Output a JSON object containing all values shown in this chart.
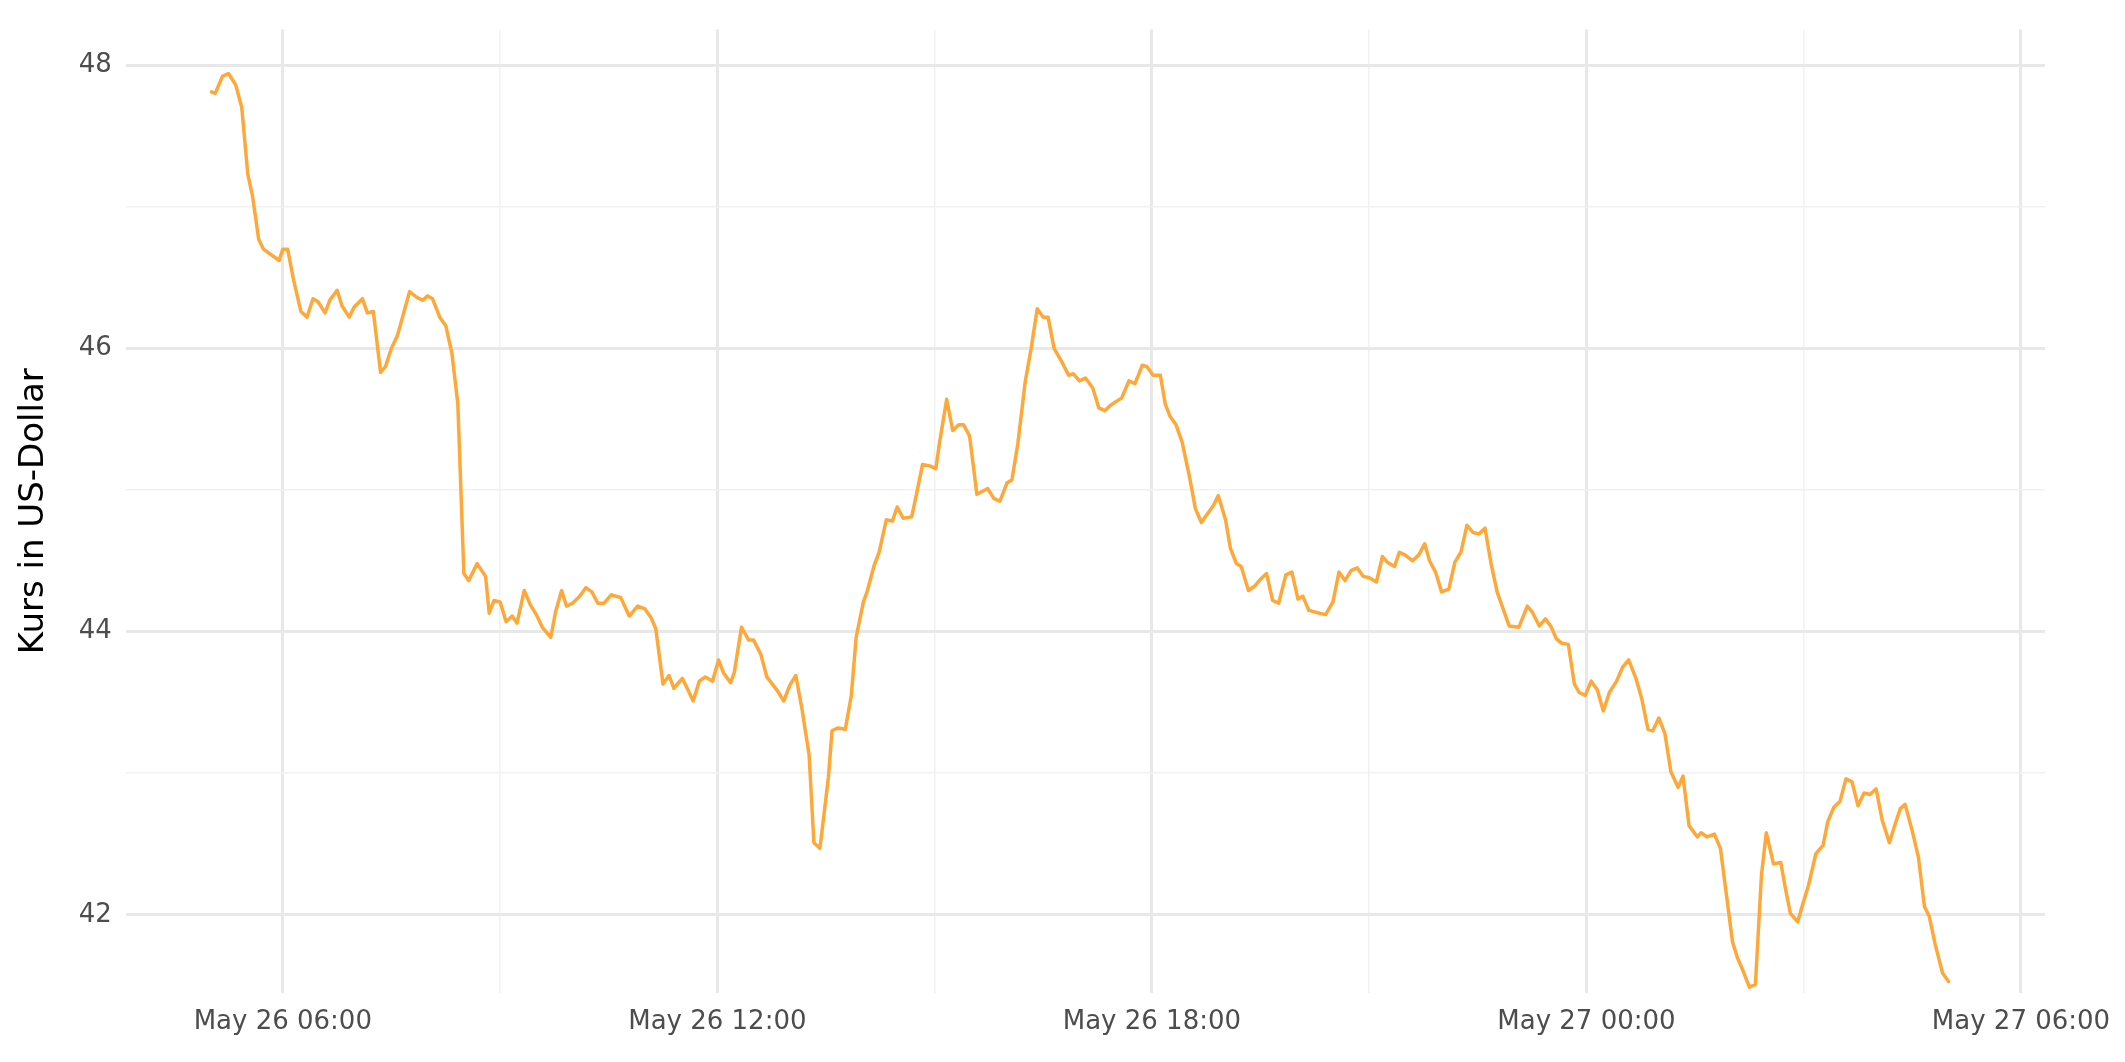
{
  "chart_data": {
    "type": "line",
    "ylabel": "Kurs in US-Dollar",
    "color": "#ffa83a",
    "line_style": "solid",
    "marker": "none",
    "grid": true,
    "legend": false,
    "x": [
      "--05-26T05:01",
      "--05-26T05:04",
      "--05-26T05:10",
      "--05-26T05:15",
      "--05-26T05:21",
      "--05-26T05:26",
      "--05-26T05:31",
      "--05-26T05:35",
      "--05-26T05:40",
      "--05-26T05:44",
      "--05-26T05:57",
      "--05-26T06:00",
      "--05-26T06:04",
      "--05-26T06:09",
      "--05-26T06:15",
      "--05-26T06:20",
      "--05-26T06:25",
      "--05-26T06:29",
      "--05-26T06:35",
      "--05-26T06:39",
      "--05-26T06:45",
      "--05-26T06:49",
      "--05-26T06:55",
      "--05-26T06:59",
      "--05-26T07:06",
      "--05-26T07:10",
      "--05-26T07:15",
      "--05-26T07:21",
      "--05-26T07:25",
      "--05-26T07:30",
      "--05-26T07:35",
      "--05-26T07:45",
      "--05-26T07:51",
      "--05-26T07:56",
      "--05-26T08:00",
      "--05-26T08:04",
      "--05-26T08:10",
      "--05-26T08:15",
      "--05-26T08:20",
      "--05-26T08:25",
      "--05-26T08:30",
      "--05-26T08:34",
      "--05-26T08:41",
      "--05-26T08:48",
      "--05-26T08:51",
      "--05-26T08:55",
      "--05-26T09:00",
      "--05-26T09:05",
      "--05-26T09:10",
      "--05-26T09:14",
      "--05-26T09:20",
      "--05-26T09:25",
      "--05-26T09:30",
      "--05-26T09:35",
      "--05-26T09:42",
      "--05-26T09:46",
      "--05-26T09:51",
      "--05-26T09:55",
      "--05-26T10:00",
      "--05-26T10:06",
      "--05-26T10:11",
      "--05-26T10:16",
      "--05-26T10:21",
      "--05-26T10:26",
      "--05-26T10:32",
      "--05-26T10:40",
      "--05-26T10:47",
      "--05-26T10:54",
      "--05-26T11:00",
      "--05-26T11:05",
      "--05-26T11:09",
      "--05-26T11:15",
      "--05-26T11:20",
      "--05-26T11:24",
      "--05-26T11:31",
      "--05-26T11:35",
      "--05-26T11:40",
      "--05-26T11:45",
      "--05-26T11:50",
      "--05-26T11:56",
      "--05-26T12:01",
      "--05-26T12:05",
      "--05-26T12:11",
      "--05-26T12:14",
      "--05-26T12:20",
      "--05-26T12:26",
      "--05-26T12:30",
      "--05-26T12:36",
      "--05-26T12:41",
      "--05-26T12:50",
      "--05-26T12:55",
      "--05-26T13:00",
      "--05-26T13:05",
      "--05-26T13:10",
      "--05-26T13:16",
      "--05-26T13:20",
      "--05-26T13:25",
      "--05-26T13:32",
      "--05-26T13:35",
      "--05-26T13:40",
      "--05-26T13:46",
      "--05-26T13:51",
      "--05-26T13:55",
      "--05-26T14:01",
      "--05-26T14:04",
      "--05-26T14:10",
      "--05-26T14:14",
      "--05-26T14:20",
      "--05-26T14:25",
      "--05-26T14:29",
      "--05-26T14:34",
      "--05-26T14:41",
      "--05-26T14:45",
      "--05-26T14:50",
      "--05-26T14:56",
      "--05-26T15:01",
      "--05-26T15:04",
      "--05-26T15:10",
      "--05-26T15:15",
      "--05-26T15:20",
      "--05-26T15:24",
      "--05-26T15:29",
      "--05-26T15:35",
      "--05-26T15:44",
      "--05-26T15:49",
      "--05-26T15:54",
      "--05-26T16:00",
      "--05-26T16:04",
      "--05-26T16:09",
      "--05-26T16:15",
      "--05-26T16:20",
      "--05-26T16:25",
      "--05-26T16:30",
      "--05-26T16:34",
      "--05-26T16:39",
      "--05-26T16:45",
      "--05-26T16:51",
      "--05-26T16:55",
      "--05-26T17:00",
      "--05-26T17:05",
      "--05-26T17:11",
      "--05-26T17:16",
      "--05-26T17:21",
      "--05-26T17:26",
      "--05-26T17:35",
      "--05-26T17:41",
      "--05-26T17:46",
      "--05-26T17:52",
      "--05-26T17:56",
      "--05-26T18:01",
      "--05-26T18:07",
      "--05-26T18:11",
      "--05-26T18:15",
      "--05-26T18:20",
      "--05-26T18:25",
      "--05-26T18:31",
      "--05-26T18:36",
      "--05-26T18:41",
      "--05-26T18:45",
      "--05-26T18:51",
      "--05-26T18:55",
      "--05-26T19:01",
      "--05-26T19:05",
      "--05-26T19:10",
      "--05-26T19:14",
      "--05-26T19:20",
      "--05-26T19:25",
      "--05-26T19:30",
      "--05-26T19:35",
      "--05-26T19:40",
      "--05-26T19:45",
      "--05-26T19:51",
      "--05-26T19:56",
      "--05-26T20:01",
      "--05-26T20:05",
      "--05-26T20:10",
      "--05-26T20:19",
      "--05-26T20:24",
      "--05-26T20:30",
      "--05-26T20:35",
      "--05-26T20:40",
      "--05-26T20:45",
      "--05-26T20:50",
      "--05-26T20:55",
      "--05-26T21:00",
      "--05-26T21:06",
      "--05-26T21:11",
      "--05-26T21:15",
      "--05-26T21:21",
      "--05-26T21:25",
      "--05-26T21:30",
      "--05-26T21:36",
      "--05-26T21:41",
      "--05-26T21:46",
      "--05-26T21:50",
      "--05-26T21:55",
      "--05-26T22:00",
      "--05-26T22:06",
      "--05-26T22:11",
      "--05-26T22:16",
      "--05-26T22:21",
      "--05-26T22:26",
      "--05-26T22:31",
      "--05-26T22:36",
      "--05-26T22:41",
      "--05-26T22:46",
      "--05-26T22:51",
      "--05-26T22:56",
      "--05-26T23:04",
      "--05-26T23:11",
      "--05-26T23:15",
      "--05-26T23:21",
      "--05-26T23:26",
      "--05-26T23:31",
      "--05-26T23:35",
      "--05-26T23:39",
      "--05-26T23:45",
      "--05-26T23:50",
      "--05-26T23:54",
      "--05-26T23:59",
      "--05-27T00:04",
      "--05-27T00:09",
      "--05-27T00:14",
      "--05-27T00:19",
      "--05-27T00:25",
      "--05-27T00:30",
      "--05-27T00:35",
      "--05-27T00:41",
      "--05-27T00:46",
      "--05-27T00:51",
      "--05-27T00:55",
      "--05-27T01:00",
      "--05-27T01:05",
      "--05-27T01:10",
      "--05-27T01:16",
      "--05-27T01:20",
      "--05-27T01:25",
      "--05-27T01:32",
      "--05-27T01:35",
      "--05-27T01:40",
      "--05-27T01:46",
      "--05-27T01:51",
      "--05-27T01:56",
      "--05-27T02:01",
      "--05-27T02:05",
      "--05-27T02:10",
      "--05-27T02:15",
      "--05-27T02:20",
      "--05-27T02:25",
      "--05-27T02:29",
      "--05-27T02:35",
      "--05-27T02:41",
      "--05-27T02:45",
      "--05-27T02:49",
      "--05-27T02:55",
      "--05-27T02:59",
      "--05-27T03:04",
      "--05-27T03:10",
      "--05-27T03:16",
      "--05-27T03:20",
      "--05-27T03:25",
      "--05-27T03:30",
      "--05-27T03:35",
      "--05-27T03:40",
      "--05-27T03:45",
      "--05-27T03:50",
      "--05-27T03:55",
      "--05-27T04:00",
      "--05-27T04:05",
      "--05-27T04:11",
      "--05-27T04:15",
      "--05-27T04:20",
      "--05-27T04:24",
      "--05-27T04:30",
      "--05-27T04:35",
      "--05-27T04:40",
      "--05-27T04:44",
      "--05-27T04:49",
      "--05-27T04:55",
      "--05-27T05:00"
    ],
    "values": [
      47.81,
      47.8,
      47.92,
      47.94,
      47.86,
      47.7,
      47.23,
      47.07,
      46.77,
      46.7,
      46.62,
      46.7,
      46.7,
      46.48,
      46.26,
      46.22,
      46.35,
      46.33,
      46.25,
      46.34,
      46.41,
      46.3,
      46.22,
      46.29,
      46.35,
      46.25,
      46.26,
      45.83,
      45.87,
      46.0,
      46.09,
      46.4,
      46.36,
      46.34,
      46.37,
      46.35,
      46.22,
      46.16,
      45.97,
      45.61,
      44.41,
      44.36,
      44.48,
      44.39,
      44.13,
      44.22,
      44.21,
      44.07,
      44.11,
      44.06,
      44.29,
      44.19,
      44.12,
      44.03,
      43.96,
      44.14,
      44.29,
      44.18,
      44.2,
      44.25,
      44.31,
      44.28,
      44.2,
      44.2,
      44.26,
      44.24,
      44.11,
      44.18,
      44.16,
      44.1,
      44.02,
      43.63,
      43.69,
      43.6,
      43.67,
      43.6,
      43.51,
      43.65,
      43.68,
      43.65,
      43.8,
      43.71,
      43.64,
      43.71,
      44.03,
      43.94,
      43.94,
      43.84,
      43.68,
      43.58,
      43.51,
      43.62,
      43.69,
      43.46,
      43.13,
      42.51,
      42.47,
      42.97,
      43.3,
      43.32,
      43.31,
      43.55,
      43.96,
      44.21,
      44.28,
      44.47,
      44.56,
      44.79,
      44.78,
      44.88,
      44.8,
      44.81,
      44.97,
      45.18,
      45.17,
      45.15,
      45.33,
      45.64,
      45.42,
      45.46,
      45.46,
      45.38,
      44.97,
      45.01,
      44.94,
      44.92,
      45.05,
      45.07,
      45.33,
      45.76,
      46.0,
      46.28,
      46.22,
      46.22,
      46.0,
      45.91,
      45.81,
      45.82,
      45.77,
      45.79,
      45.72,
      45.58,
      45.56,
      45.6,
      45.65,
      45.77,
      45.75,
      45.88,
      45.87,
      45.81,
      45.81,
      45.61,
      45.52,
      45.46,
      45.34,
      45.1,
      44.87,
      44.77,
      44.82,
      44.89,
      44.96,
      44.79,
      44.59,
      44.48,
      44.46,
      44.29,
      44.32,
      44.37,
      44.41,
      44.22,
      44.2,
      44.4,
      44.42,
      44.23,
      44.25,
      44.15,
      44.13,
      44.12,
      44.21,
      44.42,
      44.36,
      44.43,
      44.45,
      44.39,
      44.38,
      44.35,
      44.53,
      44.49,
      44.46,
      44.56,
      44.54,
      44.5,
      44.54,
      44.62,
      44.5,
      44.42,
      44.28,
      44.3,
      44.49,
      44.56,
      44.75,
      44.7,
      44.69,
      44.73,
      44.48,
      44.28,
      44.16,
      44.04,
      44.03,
      44.18,
      44.14,
      44.04,
      44.09,
      44.03,
      43.95,
      43.92,
      43.91,
      43.63,
      43.57,
      43.55,
      43.65,
      43.59,
      43.44,
      43.57,
      43.65,
      43.75,
      43.8,
      43.67,
      43.52,
      43.31,
      43.3,
      43.39,
      43.28,
      43.01,
      42.9,
      42.98,
      42.63,
      42.55,
      42.58,
      42.55,
      42.57,
      42.47,
      42.14,
      41.81,
      41.7,
      41.6,
      41.49,
      41.51,
      42.28,
      42.58,
      42.36,
      42.37,
      42.18,
      42.01,
      41.95,
      42.07,
      42.21,
      42.43,
      42.49,
      42.66,
      42.76,
      42.8,
      42.96,
      42.94,
      42.77,
      42.86,
      42.85,
      42.89,
      42.67,
      42.51,
      42.62,
      42.75,
      42.78,
      42.59,
      42.41,
      42.06,
      41.99,
      41.79,
      41.59,
      41.53
    ],
    "xlim": [
      "--05-26T03:50",
      "--05-27T06:20"
    ],
    "xticks": [
      {
        "value": "--05-26T06:00",
        "label": "May 26 06:00"
      },
      {
        "value": "--05-26T09:00",
        "label": null
      },
      {
        "value": "--05-26T12:00",
        "label": "May 26 12:00"
      },
      {
        "value": "--05-26T15:00",
        "label": null
      },
      {
        "value": "--05-26T18:00",
        "label": "May 26 18:00"
      },
      {
        "value": "--05-26T21:00",
        "label": null
      },
      {
        "value": "--05-27T00:00",
        "label": "May 27 00:00"
      },
      {
        "value": "--05-27T03:00",
        "label": null
      },
      {
        "value": "--05-27T06:00",
        "label": "May 27 06:00"
      }
    ],
    "ylim": [
      41.45,
      48.25
    ],
    "yticks": [
      42,
      {
        "value": 43,
        "label": null
      },
      44,
      {
        "value": 45,
        "label": null
      },
      46,
      {
        "value": 47,
        "label": null
      },
      48
    ]
  }
}
